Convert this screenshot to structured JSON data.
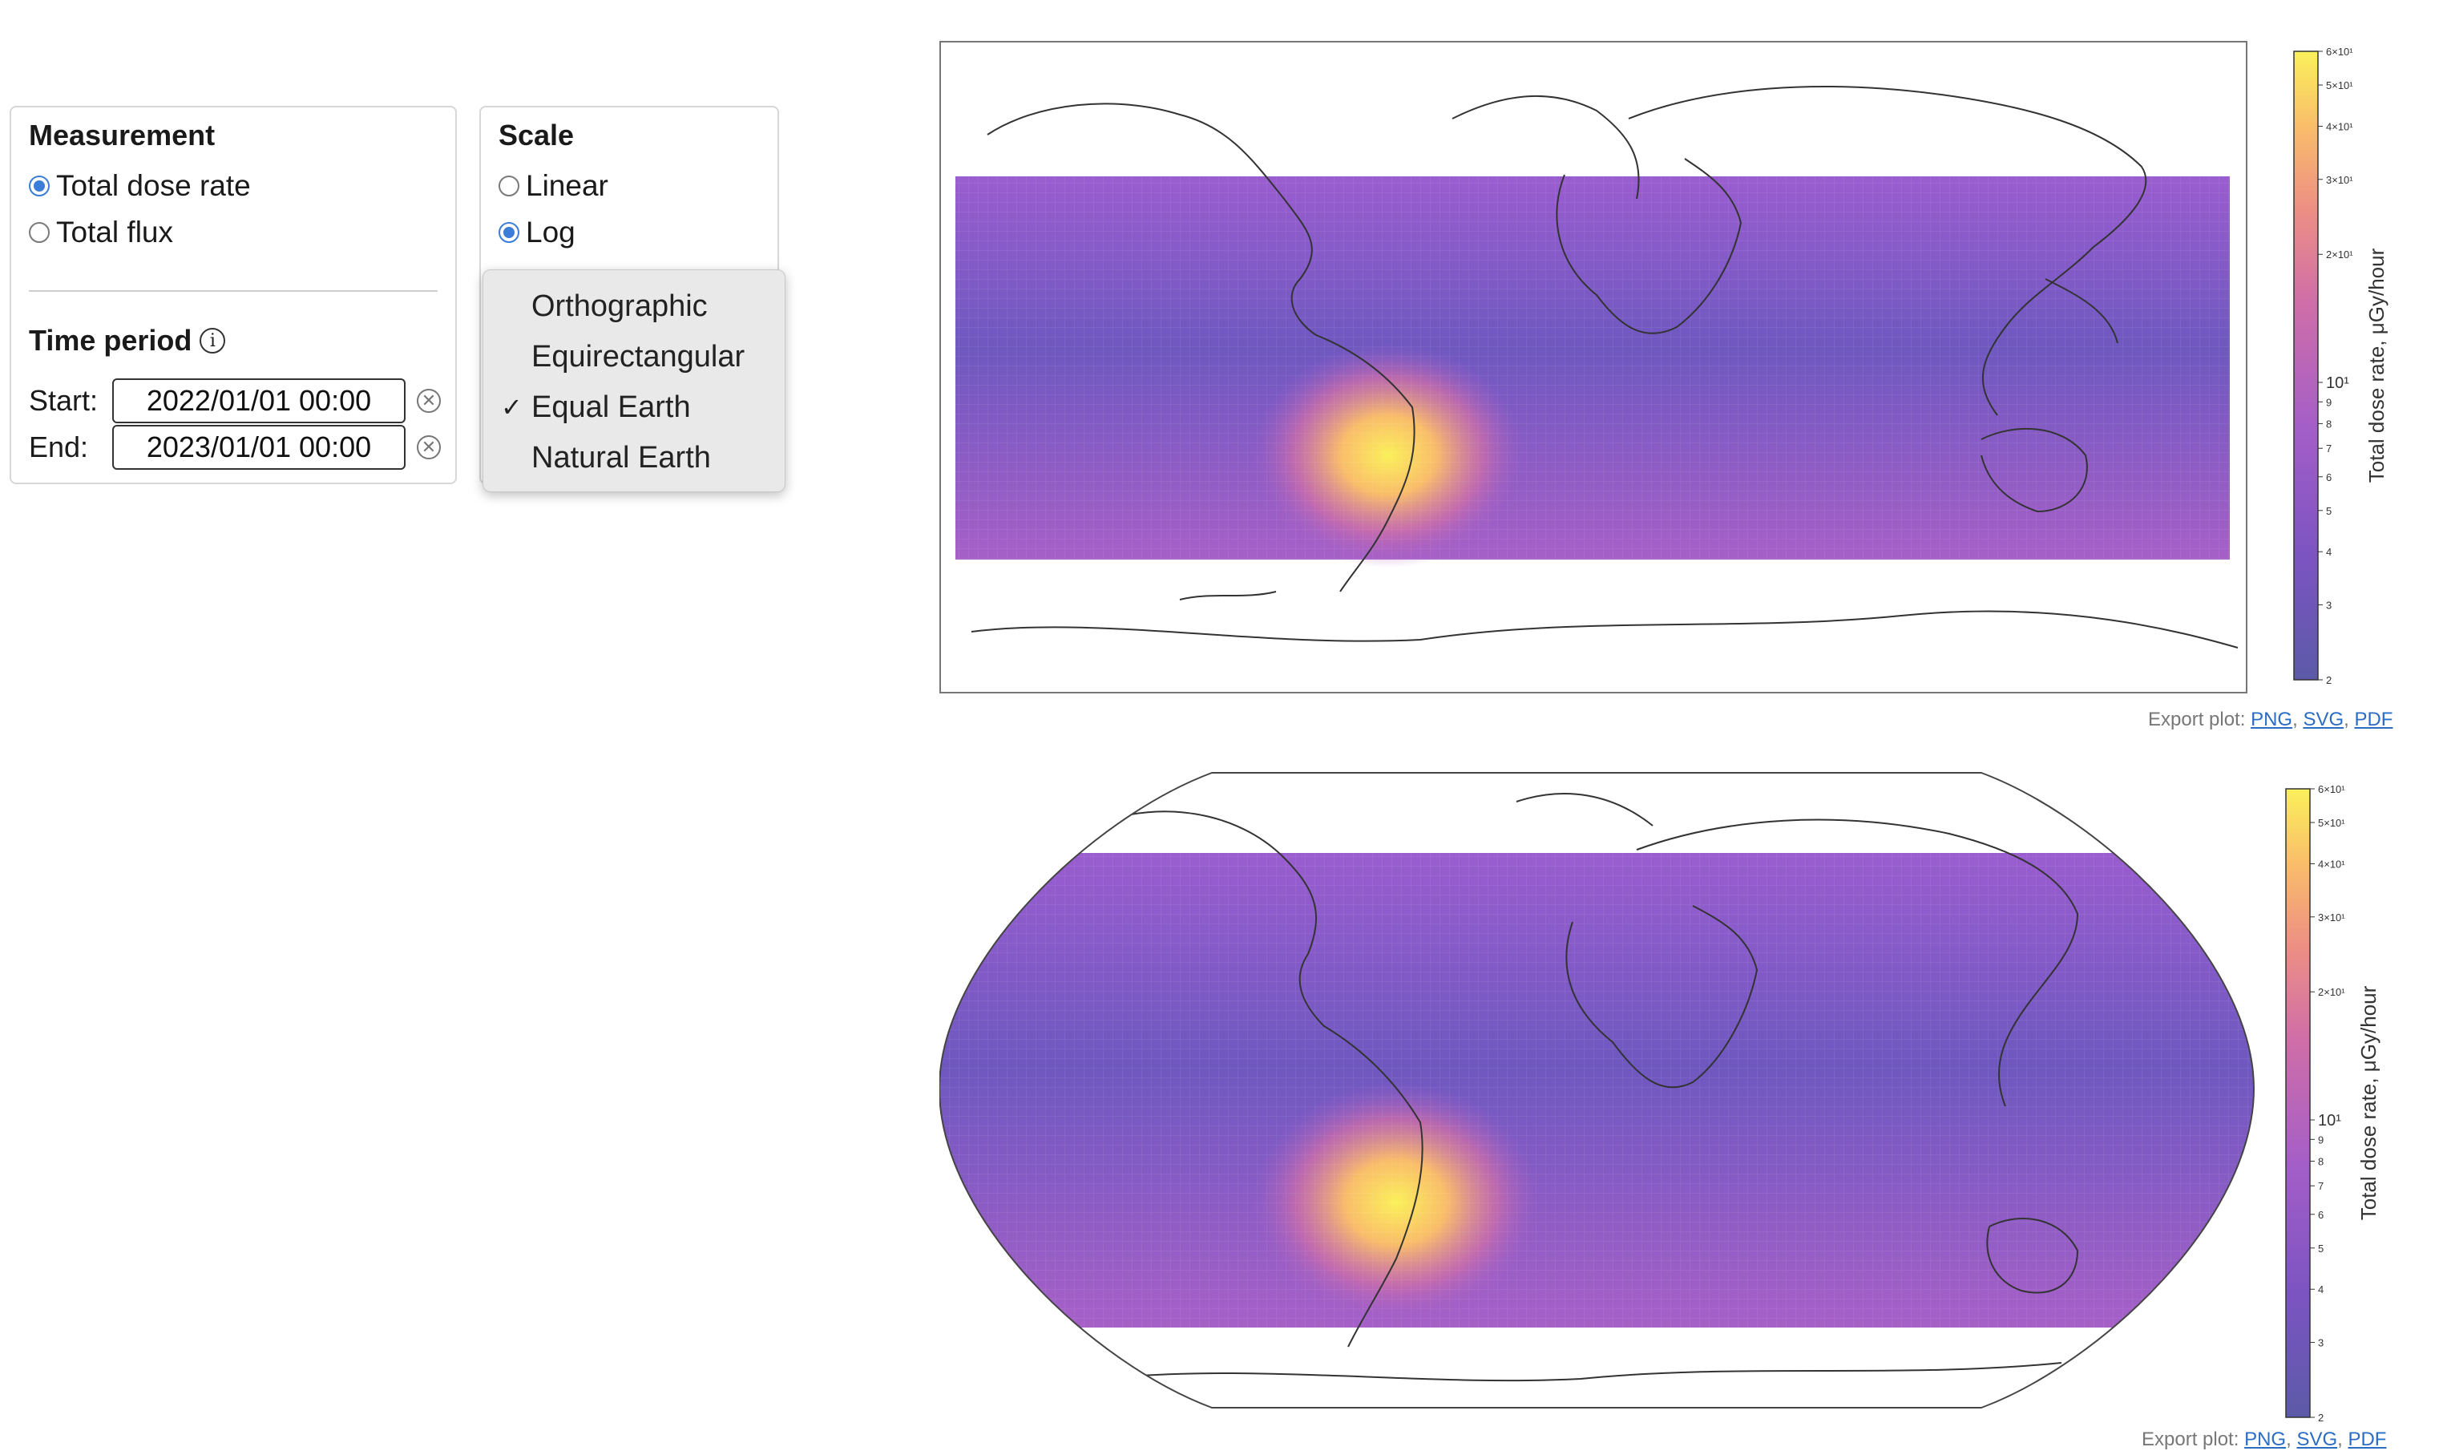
{
  "measurement": {
    "title": "Measurement",
    "options": [
      {
        "label": "Total dose rate",
        "checked": true
      },
      {
        "label": "Total flux",
        "checked": false
      }
    ]
  },
  "time_period": {
    "title": "Time period",
    "info_icon": "i",
    "start_label": "Start:",
    "start_value": "2022/01/01 00:00",
    "end_label": "End:",
    "end_value": "2023/01/01 00:00",
    "clear_icon": "✕"
  },
  "scale": {
    "title": "Scale",
    "options": [
      {
        "label": "Linear",
        "checked": false
      },
      {
        "label": "Log",
        "checked": true
      }
    ]
  },
  "projection_menu": {
    "items": [
      {
        "label": "Orthographic",
        "selected": false
      },
      {
        "label": "Equirectangular",
        "selected": false
      },
      {
        "label": "Equal Earth",
        "selected": true
      },
      {
        "label": "Natural Earth",
        "selected": false
      }
    ],
    "check_glyph": "✓"
  },
  "maps": [
    {
      "projection": "equirectangular",
      "colorbar": {
        "title": "Total dose rate, μGy/hour",
        "scale": "log",
        "range": [
          2,
          60
        ],
        "ticks": [
          {
            "value": 60,
            "label": "6×10¹"
          },
          {
            "value": 50,
            "label": "5×10¹"
          },
          {
            "value": 40,
            "label": "4×10¹"
          },
          {
            "value": 30,
            "label": "3×10¹"
          },
          {
            "value": 20,
            "label": "2×10¹"
          },
          {
            "value": 10,
            "label": "10¹",
            "major": true
          },
          {
            "value": 9,
            "label": "9"
          },
          {
            "value": 8,
            "label": "8"
          },
          {
            "value": 7,
            "label": "7"
          },
          {
            "value": 6,
            "label": "6"
          },
          {
            "value": 5,
            "label": "5"
          },
          {
            "value": 4,
            "label": "4"
          },
          {
            "value": 3,
            "label": "3"
          },
          {
            "value": 2,
            "label": "2"
          }
        ],
        "colors": [
          "#5c5aa8",
          "#7c54c2",
          "#a45ec8",
          "#cf6ea8",
          "#ee8f84",
          "#f9bd6a",
          "#fbf05a"
        ]
      },
      "export": {
        "label": "Export plot:",
        "png": "PNG",
        "svg": "SVG",
        "pdf": "PDF"
      }
    },
    {
      "projection": "equal-earth",
      "colorbar": {
        "title": "Total dose rate, μGy/hour",
        "scale": "log",
        "range": [
          2,
          60
        ],
        "ticks": [
          {
            "value": 60,
            "label": "6×10¹"
          },
          {
            "value": 50,
            "label": "5×10¹"
          },
          {
            "value": 40,
            "label": "4×10¹"
          },
          {
            "value": 30,
            "label": "3×10¹"
          },
          {
            "value": 20,
            "label": "2×10¹"
          },
          {
            "value": 10,
            "label": "10¹",
            "major": true
          },
          {
            "value": 9,
            "label": "9"
          },
          {
            "value": 8,
            "label": "8"
          },
          {
            "value": 7,
            "label": "7"
          },
          {
            "value": 6,
            "label": "6"
          },
          {
            "value": 5,
            "label": "5"
          },
          {
            "value": 4,
            "label": "4"
          },
          {
            "value": 3,
            "label": "3"
          },
          {
            "value": 2,
            "label": "2"
          }
        ],
        "colors": [
          "#5c5aa8",
          "#7c54c2",
          "#a45ec8",
          "#cf6ea8",
          "#ee8f84",
          "#f9bd6a",
          "#fbf05a"
        ]
      },
      "export": {
        "label": "Export plot:",
        "png": "PNG",
        "svg": "SVG",
        "pdf": "PDF"
      }
    }
  ]
}
